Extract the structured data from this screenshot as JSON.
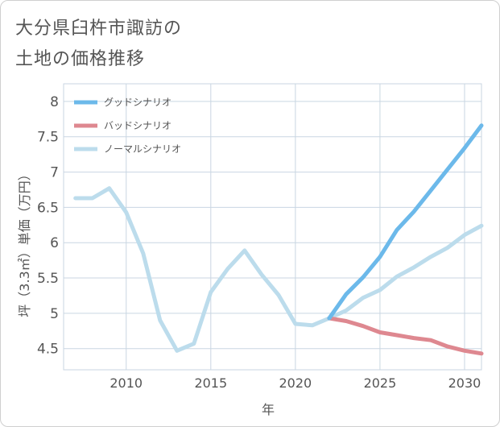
{
  "title_lines": [
    "大分県臼杵市諏訪の",
    "土地の価格推移"
  ],
  "chart_data": {
    "type": "line",
    "xlabel": "年",
    "ylabel": "坪（3.3㎡）単価（万円）",
    "xlim": [
      2006.3,
      2031
    ],
    "ylim": [
      4.2,
      8.25
    ],
    "x_ticks": [
      2010,
      2015,
      2020,
      2025,
      2030
    ],
    "y_ticks": [
      4.5,
      5,
      5.5,
      6,
      6.5,
      7,
      7.5,
      8
    ],
    "y_tick_labels": [
      "4.5",
      "5",
      "5.5",
      "6",
      "6.5",
      "7",
      "7.5",
      "8"
    ],
    "grid": true,
    "legend_position": "top-left",
    "series": [
      {
        "name": "グッドシナリオ",
        "color": "#6cb9ea",
        "x": [
          2022,
          2023,
          2024,
          2025,
          2026,
          2027,
          2028,
          2029,
          2030,
          2031
        ],
        "values": [
          4.93,
          5.27,
          5.51,
          5.8,
          6.18,
          6.44,
          6.74,
          7.04,
          7.34,
          7.66
        ]
      },
      {
        "name": "バッドシナリオ",
        "color": "#de8890",
        "x": [
          2022,
          2023,
          2024,
          2025,
          2026,
          2027,
          2028,
          2029,
          2030,
          2031
        ],
        "values": [
          4.93,
          4.89,
          4.82,
          4.73,
          4.69,
          4.65,
          4.62,
          4.53,
          4.47,
          4.43
        ]
      },
      {
        "name": "ノーマルシナリオ",
        "color": "#bcdcec",
        "x": [
          2007,
          2008,
          2009,
          2010,
          2011,
          2012,
          2013,
          2014,
          2015,
          2016,
          2017,
          2018,
          2019,
          2020,
          2021,
          2022,
          2023,
          2024,
          2025,
          2026,
          2027,
          2028,
          2029,
          2030,
          2031
        ],
        "values": [
          6.63,
          6.63,
          6.77,
          6.43,
          5.85,
          4.9,
          4.47,
          4.57,
          5.3,
          5.63,
          5.89,
          5.55,
          5.26,
          4.85,
          4.83,
          4.93,
          5.04,
          5.22,
          5.33,
          5.52,
          5.65,
          5.8,
          5.93,
          6.11,
          6.24
        ]
      }
    ]
  }
}
